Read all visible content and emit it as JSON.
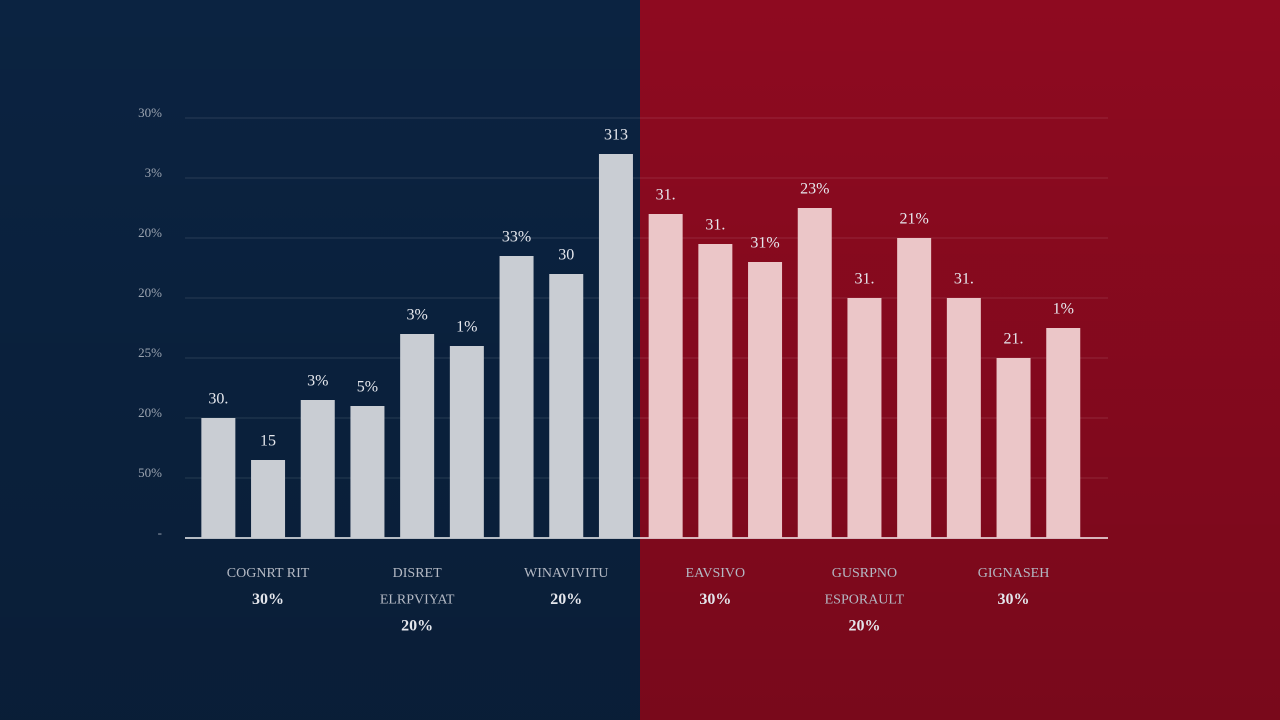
{
  "chart_data": {
    "type": "bar",
    "categories": [
      null,
      null,
      null,
      null,
      null,
      null,
      null,
      null,
      null,
      null,
      null,
      null,
      null,
      null,
      null,
      null,
      null,
      null
    ],
    "values": [
      2.0,
      1.3,
      2.3,
      2.2,
      3.4,
      3.2,
      4.7,
      4.4,
      6.4,
      5.4,
      4.9,
      4.6,
      5.5,
      4.0,
      5.0,
      4.0,
      3.0,
      3.5
    ],
    "bar_labels": [
      "30.",
      "15",
      "3%",
      "5%",
      "3%",
      "1%",
      "33%",
      "30",
      "313",
      "31.",
      "31.",
      "31%",
      "23%",
      "31.",
      "21%",
      "31.",
      "21.",
      "1%"
    ],
    "colors": [
      "#c9cdd3",
      "#c9cdd3",
      "#c9cdd3",
      "#c9cdd3",
      "#c9cdd3",
      "#c9cdd3",
      "#c9cdd3",
      "#c9cdd3",
      "#c9cdd3",
      "#ebc6c8",
      "#ebc6c8",
      "#ebc6c8",
      "#ebc6c8",
      "#ebc6c8",
      "#ebc6c8",
      "#ebc6c8",
      "#ebc6c8",
      "#ebc6c8"
    ],
    "groups": [
      [
        "COGNRT RIT",
        "30%"
      ],
      [
        "DISRET",
        "ELRPVIYAT",
        "20%"
      ],
      [
        "WINAVIVITU",
        "20%"
      ],
      [
        "EAVSIVO",
        "30%"
      ],
      [
        "GUSRPNO",
        "ESPORAULT",
        "20%"
      ],
      [
        "GIGNASEH",
        "30%"
      ]
    ],
    "ylim": [
      0,
      7
    ],
    "yticks": [
      {
        "value": 0,
        "label": "-"
      },
      {
        "value": 1,
        "label": "50%"
      },
      {
        "value": 2,
        "label": "20%"
      },
      {
        "value": 3,
        "label": "25%"
      },
      {
        "value": 4,
        "label": "20%"
      },
      {
        "value": 5,
        "label": "20%"
      },
      {
        "value": 6,
        "label": "3%"
      },
      {
        "value": 7,
        "label": "30%"
      }
    ],
    "grid": true,
    "background": [
      "#0b2341",
      "#8e0a20"
    ]
  }
}
